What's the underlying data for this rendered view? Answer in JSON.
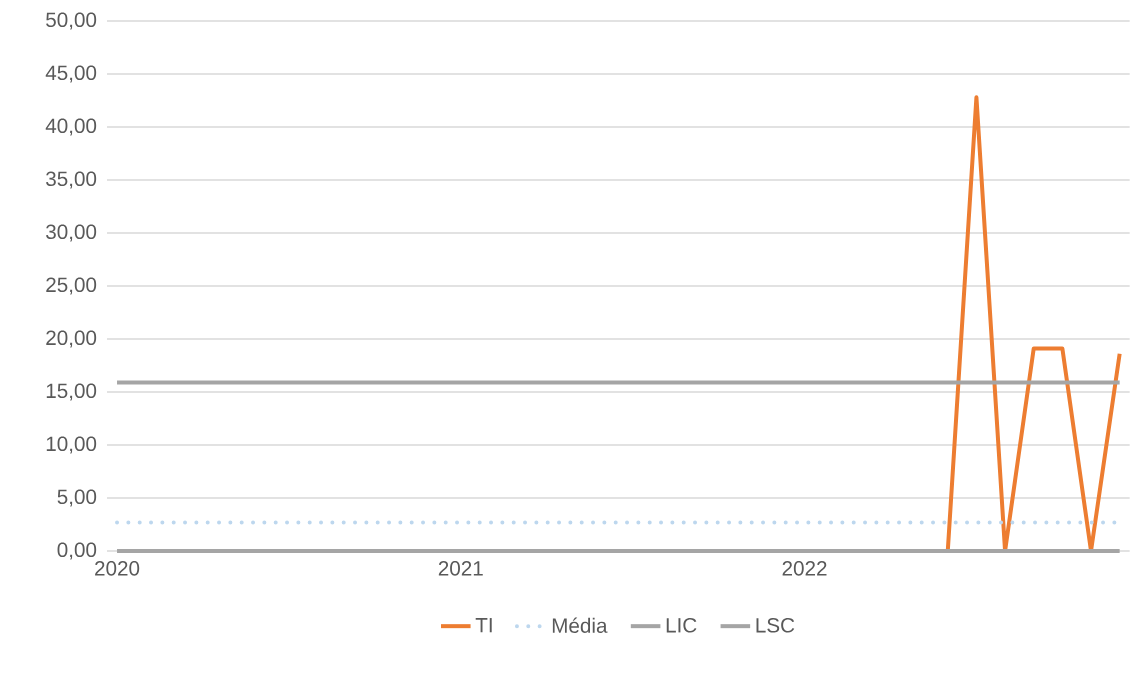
{
  "chart_data": {
    "type": "line",
    "categories": [
      "2020",
      null,
      null,
      null,
      null,
      null,
      null,
      null,
      null,
      null,
      null,
      null,
      "2021",
      null,
      null,
      null,
      null,
      null,
      null,
      null,
      null,
      null,
      null,
      null,
      "2022",
      null,
      null,
      null,
      null,
      null,
      null,
      null,
      null,
      null,
      null,
      null
    ],
    "series": [
      {
        "name": "TI",
        "color": "#ed7d31",
        "line_style": "solid",
        "values": [
          null,
          null,
          null,
          null,
          null,
          null,
          null,
          null,
          null,
          null,
          null,
          null,
          null,
          null,
          null,
          null,
          null,
          null,
          null,
          null,
          null,
          null,
          null,
          null,
          null,
          null,
          null,
          null,
          null,
          0,
          42.8,
          0,
          19.1,
          19.1,
          0,
          18.6
        ]
      },
      {
        "name": "Média",
        "color": "#bdd7ee",
        "line_style": "dotted",
        "values": [
          2.7,
          2.7,
          2.7,
          2.7,
          2.7,
          2.7,
          2.7,
          2.7,
          2.7,
          2.7,
          2.7,
          2.7,
          2.7,
          2.7,
          2.7,
          2.7,
          2.7,
          2.7,
          2.7,
          2.7,
          2.7,
          2.7,
          2.7,
          2.7,
          2.7,
          2.7,
          2.7,
          2.7,
          2.7,
          2.7,
          2.7,
          2.7,
          2.7,
          2.7,
          2.7,
          2.7
        ]
      },
      {
        "name": "LIC",
        "color": "#a5a5a5",
        "line_style": "solid",
        "values": [
          0,
          0,
          0,
          0,
          0,
          0,
          0,
          0,
          0,
          0,
          0,
          0,
          0,
          0,
          0,
          0,
          0,
          0,
          0,
          0,
          0,
          0,
          0,
          0,
          0,
          0,
          0,
          0,
          0,
          0,
          0,
          0,
          0,
          0,
          0,
          0
        ]
      },
      {
        "name": "LSC",
        "color": "#a5a5a5",
        "line_style": "solid",
        "values": [
          15.9,
          15.9,
          15.9,
          15.9,
          15.9,
          15.9,
          15.9,
          15.9,
          15.9,
          15.9,
          15.9,
          15.9,
          15.9,
          15.9,
          15.9,
          15.9,
          15.9,
          15.9,
          15.9,
          15.9,
          15.9,
          15.9,
          15.9,
          15.9,
          15.9,
          15.9,
          15.9,
          15.9,
          15.9,
          15.9,
          15.9,
          15.9,
          15.9,
          15.9,
          15.9,
          15.9
        ]
      }
    ],
    "ylim": [
      0,
      50
    ],
    "yticks": [
      {
        "value": 0,
        "label": "0,00"
      },
      {
        "value": 5,
        "label": "5,00"
      },
      {
        "value": 10,
        "label": "10,00"
      },
      {
        "value": 15,
        "label": "15,00"
      },
      {
        "value": 20,
        "label": "20,00"
      },
      {
        "value": 25,
        "label": "25,00"
      },
      {
        "value": 30,
        "label": "30,00"
      },
      {
        "value": 35,
        "label": "35,00"
      },
      {
        "value": 40,
        "label": "40,00"
      },
      {
        "value": 45,
        "label": "45,00"
      },
      {
        "value": 50,
        "label": "50,00"
      }
    ],
    "grid": "y",
    "legend": "bottom",
    "marker": "none"
  }
}
